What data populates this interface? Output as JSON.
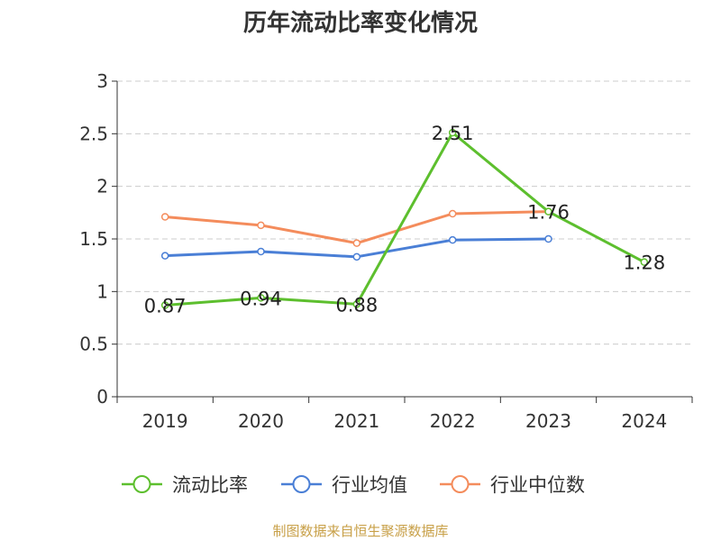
{
  "chart_data": {
    "type": "line",
    "title": "历年流动比率变化情况",
    "categories": [
      "2019",
      "2020",
      "2021",
      "2022",
      "2023",
      "2024"
    ],
    "ylim": [
      0,
      3
    ],
    "yticks": [
      0,
      0.5,
      1,
      1.5,
      2,
      2.5,
      3
    ],
    "ytick_labels": [
      "0",
      "0.5",
      "1",
      "1.5",
      "2",
      "2.5",
      "3"
    ],
    "grid": true,
    "legend_position": "bottom",
    "series": [
      {
        "name": "流动比率",
        "color": "#5dbf2e",
        "values": [
          0.87,
          0.94,
          0.88,
          2.51,
          1.76,
          1.28
        ],
        "labels": [
          "0.87",
          "0.94",
          "0.88",
          "2.51",
          "1.76",
          "1.28"
        ],
        "show_labels": true
      },
      {
        "name": "行业均值",
        "color": "#4a7fd6",
        "values": [
          1.34,
          1.38,
          1.33,
          1.49,
          1.5,
          null
        ],
        "show_labels": false
      },
      {
        "name": "行业中位数",
        "color": "#f48c5c",
        "values": [
          1.71,
          1.63,
          1.46,
          1.74,
          1.76,
          null
        ],
        "show_labels": false
      }
    ]
  },
  "source_text": "制图数据来自恒生聚源数据库"
}
